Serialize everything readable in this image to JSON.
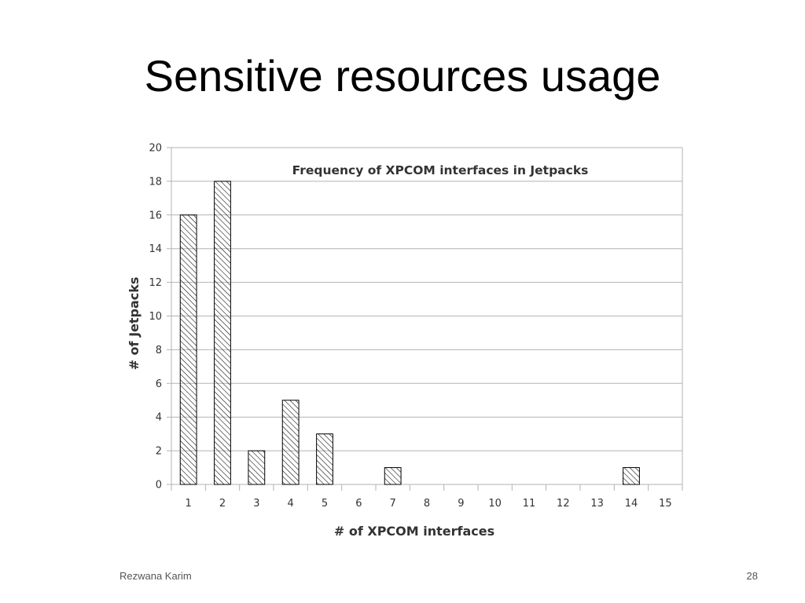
{
  "slide": {
    "title": "Sensitive resources usage",
    "footer_author": "Rezwana Karim",
    "page_number": "28"
  },
  "colors": {
    "gridline": "#b3b3b3",
    "bar_stroke": "#000000",
    "bar_hatch": "#000000",
    "text": "#333333"
  },
  "chart_data": {
    "type": "bar",
    "title": "Frequency of XPCOM interfaces in Jetpacks",
    "xlabel": "# of XPCOM interfaces",
    "ylabel": "# of Jetpacks",
    "categories": [
      "1",
      "2",
      "3",
      "4",
      "5",
      "6",
      "7",
      "8",
      "9",
      "10",
      "11",
      "12",
      "13",
      "14",
      "15"
    ],
    "values": [
      16,
      18,
      2,
      5,
      3,
      0,
      1,
      0,
      0,
      0,
      0,
      0,
      0,
      1,
      0
    ],
    "ylim": [
      0,
      20
    ],
    "yticks": [
      0,
      2,
      4,
      6,
      8,
      10,
      12,
      14,
      16,
      18,
      20
    ],
    "grid": true,
    "legend": "none",
    "bar_fill": "diagonal hatch"
  }
}
